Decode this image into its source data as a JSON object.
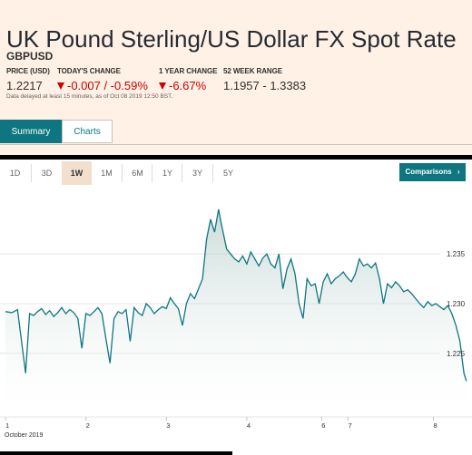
{
  "header": {
    "title": "UK Pound Sterling/US Dollar FX Spot Rate",
    "symbol": "GBPUSD"
  },
  "stats": {
    "price_label": "PRICE (USD)",
    "price_value": "1.2217",
    "today_label": "TODAY'S CHANGE",
    "today_value": "-0.007 / -0.59%",
    "year_label": "1 YEAR CHANGE",
    "year_value": "-6.67%",
    "range_label": "52 WEEK RANGE",
    "range_value": "1.1957 - 1.3383",
    "negative_color": "#cc0000"
  },
  "delay_notice": "Data delayed at least 15 minutes, as of Oct 08 2019 12:50 BST.",
  "tabs": [
    {
      "label": "Summary",
      "active": true
    },
    {
      "label": "Charts",
      "active": false
    }
  ],
  "ranges": [
    {
      "label": "1D",
      "active": false
    },
    {
      "label": "3D",
      "active": false
    },
    {
      "label": "1W",
      "active": true
    },
    {
      "label": "1M",
      "active": false
    },
    {
      "label": "6M",
      "active": false
    },
    {
      "label": "1Y",
      "active": false
    },
    {
      "label": "3Y",
      "active": false
    },
    {
      "label": "5Y",
      "active": false
    }
  ],
  "comparisons_label": "Comparisons",
  "comparisons_icon": "chevron-right-icon",
  "chart_data": {
    "type": "area",
    "x_ticks": [
      {
        "label": "1",
        "x": 0
      },
      {
        "label": "2",
        "x": 1
      },
      {
        "label": "3",
        "x": 2
      },
      {
        "label": "4",
        "x": 3
      },
      {
        "label": "6",
        "x": 3.93
      },
      {
        "label": "7",
        "x": 4.26
      },
      {
        "label": "8",
        "x": 5.32
      }
    ],
    "x_sublabel": "October 2019",
    "y_ticks": [
      "1.235",
      "1.230",
      "1.225"
    ],
    "ylim": [
      1.2195,
      1.2405
    ],
    "xlim": [
      0,
      5.8
    ],
    "line_color": "#0d7680",
    "series": [
      {
        "x": [
          0,
          0.08,
          0.15,
          0.25,
          0.3,
          0.35,
          0.4,
          0.45,
          0.5,
          0.55,
          0.6,
          0.65,
          0.7,
          0.75,
          0.8,
          0.85,
          0.9,
          0.95,
          1.0,
          1.05,
          1.1,
          1.15,
          1.2,
          1.25,
          1.3,
          1.35,
          1.4,
          1.45,
          1.5,
          1.55,
          1.6,
          1.65,
          1.7,
          1.75,
          1.8,
          1.85,
          1.9,
          1.95,
          2.0,
          2.05,
          2.1,
          2.15,
          2.2,
          2.25,
          2.3,
          2.35,
          2.4,
          2.45,
          2.5,
          2.55,
          2.6,
          2.65,
          2.68,
          2.71,
          2.75,
          2.8,
          2.85,
          2.9,
          2.95,
          3.0,
          3.05,
          3.1,
          3.15,
          3.2,
          3.25,
          3.3,
          3.35,
          3.4,
          3.45,
          3.5,
          3.55,
          3.6,
          3.65,
          3.7,
          3.75,
          3.8,
          3.85,
          3.9,
          3.95,
          4.0,
          4.05,
          4.1,
          4.15,
          4.2,
          4.25,
          4.3,
          4.35,
          4.4,
          4.45,
          4.5,
          4.55,
          4.6,
          4.65,
          4.7,
          4.75,
          4.8,
          4.85,
          4.9,
          4.95,
          5.0,
          5.05,
          5.1,
          5.15,
          5.2,
          5.25,
          5.3,
          5.35,
          5.4,
          5.45,
          5.5,
          5.55,
          5.6,
          5.65,
          5.7,
          5.73
        ],
        "y": [
          1.2292,
          1.2291,
          1.2294,
          1.223,
          1.229,
          1.2288,
          1.2292,
          1.2295,
          1.2289,
          1.2293,
          1.2287,
          1.2291,
          1.2296,
          1.229,
          1.2294,
          1.2291,
          1.2285,
          1.2255,
          1.229,
          1.2288,
          1.2292,
          1.2296,
          1.229,
          1.2264,
          1.224,
          1.2285,
          1.2292,
          1.229,
          1.2294,
          1.2262,
          1.2296,
          1.2291,
          1.2288,
          1.23,
          1.2296,
          1.229,
          1.2294,
          1.2297,
          1.2295,
          1.2306,
          1.23,
          1.2295,
          1.2278,
          1.23,
          1.231,
          1.2305,
          1.2315,
          1.2325,
          1.2365,
          1.2385,
          1.2372,
          1.2395,
          1.2382,
          1.237,
          1.2355,
          1.235,
          1.2345,
          1.2342,
          1.2348,
          1.234,
          1.2352,
          1.2345,
          1.2338,
          1.2346,
          1.235,
          1.234,
          1.2336,
          1.235,
          1.2315,
          1.2335,
          1.2345,
          1.233,
          1.23,
          1.2285,
          1.2325,
          1.2318,
          1.232,
          1.23,
          1.2322,
          1.233,
          1.232,
          1.2325,
          1.2328,
          1.2332,
          1.2326,
          1.2322,
          1.233,
          1.2345,
          1.2338,
          1.234,
          1.2336,
          1.2341,
          1.2325,
          1.23,
          1.232,
          1.2316,
          1.2322,
          1.2318,
          1.2312,
          1.2314,
          1.231,
          1.2305,
          1.23,
          1.2296,
          1.2302,
          1.2298,
          1.23,
          1.2297,
          1.2294,
          1.2298,
          1.229,
          1.2278,
          1.2262,
          1.223,
          1.2222
        ]
      }
    ]
  }
}
